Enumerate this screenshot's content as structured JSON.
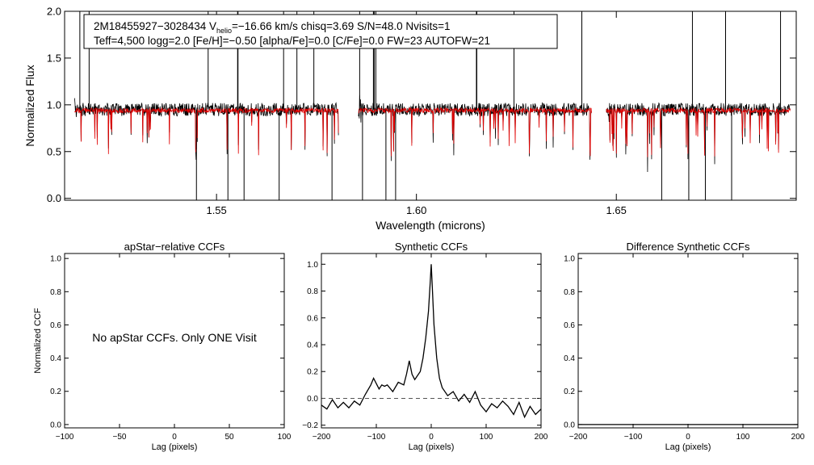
{
  "colors": {
    "observed": "#000000",
    "model": "#e00000",
    "zero_line": "#555555",
    "axes": "#000000",
    "background": "#ffffff"
  },
  "chart_data": [
    {
      "type": "line",
      "id": "spectrum",
      "title": "",
      "info_line1": "2M18455927−3028434  V",
      "info_sub": "helio",
      "info_line1b": "=−16.66 km/s  chisq=3.69  S/N=48.0  Nvisits=1",
      "info_line2": "Teff=4,500 logg=2.0 [Fe/H]=−0.50 [alpha/Fe]=0.0 [C/Fe]=0.0 FW=23 AUTOFW=21",
      "xlabel": "Wavelength (microns)",
      "ylabel": "Normalized Flux",
      "xlim": [
        1.512,
        1.695
      ],
      "ylim": [
        -0.02,
        2.0
      ],
      "xticks": [
        "1.55",
        "1.60",
        "1.65"
      ],
      "yticks": [
        "0.0",
        "0.5",
        "1.0",
        "1.5",
        "2.0"
      ],
      "continuum": 0.95,
      "chips": [
        [
          1.5145,
          1.5805
        ],
        [
          1.5855,
          1.6438
        ],
        [
          1.6475,
          1.6935
        ]
      ],
      "series": [
        {
          "name": "observed",
          "color": "black",
          "noise": 0.07
        },
        {
          "name": "model",
          "color": "red",
          "noise": 0.025
        }
      ]
    },
    {
      "type": "line",
      "id": "apstar-ccf",
      "title": "apStar−relative CCFs",
      "xlabel": "Lag (pixels)",
      "ylabel": "Normalized CCF",
      "xlim": [
        -100,
        100
      ],
      "ylim": [
        -0.02,
        1.03
      ],
      "xticks": [
        "−100",
        "−50",
        "0",
        "50",
        "100"
      ],
      "yticks": [
        "0.0",
        "0.2",
        "0.4",
        "0.6",
        "0.8",
        "1.0"
      ],
      "message": "No apStar CCFs.  Only ONE Visit",
      "series": []
    },
    {
      "type": "line",
      "id": "synthetic-ccf",
      "title": "Synthetic CCFs",
      "xlabel": "Lag (pixels)",
      "ylabel": "",
      "xlim": [
        -200,
        200
      ],
      "ylim": [
        -0.22,
        1.08
      ],
      "xticks": [
        "−200",
        "−100",
        "0",
        "100",
        "200"
      ],
      "yticks": [
        "−0.2",
        "0.0",
        "0.2",
        "0.4",
        "0.6",
        "0.8",
        "1.0"
      ],
      "zero_line": 0.0,
      "series": [
        {
          "name": "synthetic",
          "color": "black",
          "x": [
            -200,
            -190,
            -180,
            -170,
            -160,
            -150,
            -140,
            -130,
            -120,
            -110,
            -105,
            -100,
            -95,
            -90,
            -85,
            -80,
            -70,
            -60,
            -50,
            -45,
            -40,
            -35,
            -30,
            -25,
            -20,
            -15,
            -10,
            -5,
            -2,
            0,
            2,
            5,
            10,
            15,
            20,
            30,
            40,
            50,
            60,
            70,
            80,
            90,
            100,
            110,
            120,
            130,
            140,
            150,
            160,
            170,
            180,
            190,
            200
          ],
          "y": [
            -0.05,
            -0.08,
            -0.01,
            -0.07,
            -0.03,
            -0.07,
            -0.02,
            -0.05,
            0.03,
            0.1,
            0.15,
            0.11,
            0.07,
            0.1,
            0.09,
            0.1,
            0.05,
            0.12,
            0.1,
            0.18,
            0.28,
            0.18,
            0.14,
            0.17,
            0.2,
            0.3,
            0.45,
            0.65,
            0.85,
            1.0,
            0.82,
            0.55,
            0.3,
            0.15,
            0.08,
            0.02,
            0.05,
            -0.02,
            0.03,
            -0.03,
            0.05,
            -0.05,
            -0.1,
            -0.04,
            -0.07,
            -0.02,
            -0.06,
            -0.12,
            -0.03,
            -0.14,
            -0.06,
            -0.12,
            -0.08
          ]
        }
      ]
    },
    {
      "type": "line",
      "id": "difference-ccf",
      "title": "Difference Synthetic CCFs",
      "xlabel": "Lag (pixels)",
      "ylabel": "",
      "xlim": [
        -200,
        200
      ],
      "ylim": [
        -0.02,
        1.03
      ],
      "xticks": [
        "−200",
        "−100",
        "0",
        "100",
        "200"
      ],
      "yticks": [
        "0.0",
        "0.2",
        "0.4",
        "0.6",
        "0.8",
        "1.0"
      ],
      "series": [
        {
          "name": "difference",
          "color": "black",
          "x": [
            -200,
            200
          ],
          "y": [
            0.0,
            0.0
          ]
        }
      ]
    }
  ]
}
